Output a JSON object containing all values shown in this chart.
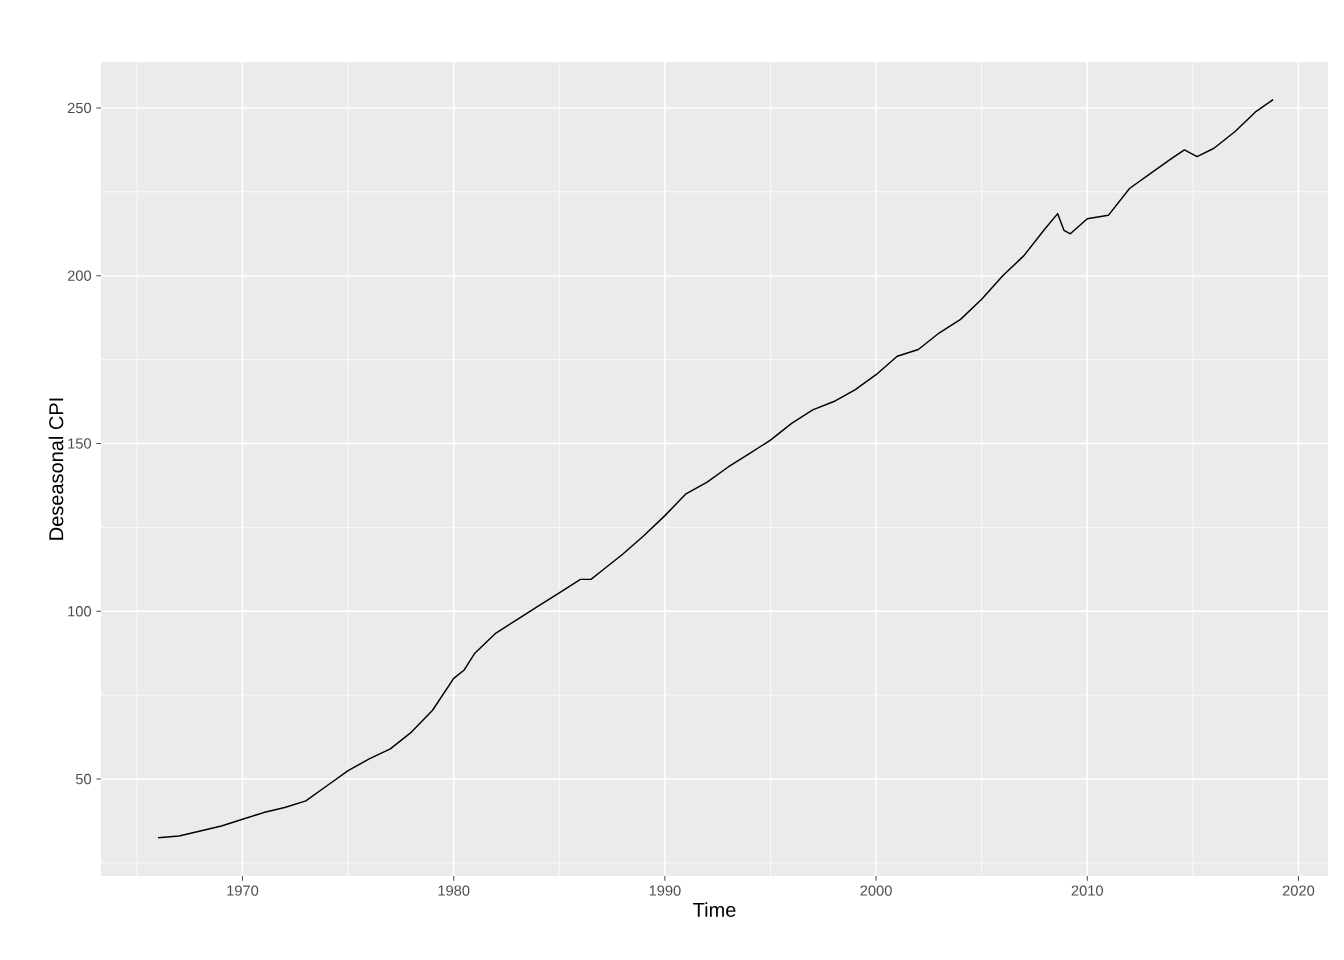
{
  "chart_data": {
    "type": "line",
    "xlabel": "Time",
    "ylabel": "Deseasonal CPI",
    "color": "#000000",
    "grid": true,
    "x": [
      1966,
      1967,
      1968,
      1969,
      1970,
      1971,
      1972,
      1973,
      1974,
      1975,
      1976,
      1977,
      1978,
      1979,
      1980,
      1980.5,
      1981,
      1982,
      1983,
      1984,
      1985,
      1986,
      1986.5,
      1987,
      1988,
      1989,
      1990,
      1991,
      1992,
      1993,
      1994,
      1995,
      1996,
      1997,
      1998,
      1999,
      2000,
      2001,
      2002,
      2003,
      2004,
      2005,
      2006,
      2007,
      2008,
      2008.6,
      2008.9,
      2009.2,
      2010,
      2011,
      2012,
      2013,
      2014,
      2014.6,
      2015.2,
      2016,
      2017,
      2018,
      2018.8
    ],
    "values": [
      32.5,
      33,
      34.5,
      36,
      38,
      40,
      41.5,
      43.5,
      48,
      52.5,
      56,
      59,
      64,
      70.5,
      80,
      82.5,
      87.5,
      93.5,
      97.5,
      101.5,
      105.5,
      109.5,
      109.5,
      112,
      117,
      122.5,
      128.5,
      135,
      138.5,
      143,
      147,
      151,
      156,
      160,
      162.5,
      166,
      170.5,
      176,
      178,
      183,
      187,
      193,
      200,
      206,
      214,
      218.5,
      213.5,
      212.5,
      217,
      218,
      226,
      230.5,
      235,
      237.5,
      235.5,
      238,
      243,
      249,
      252.5
    ],
    "xlim": [
      1963.3,
      2021.4
    ],
    "ylim": [
      21.1,
      263.7
    ],
    "xticks": [
      1970,
      1980,
      1990,
      2000,
      2010,
      2020
    ],
    "yticks": [
      50,
      100,
      150,
      200,
      250
    ]
  }
}
